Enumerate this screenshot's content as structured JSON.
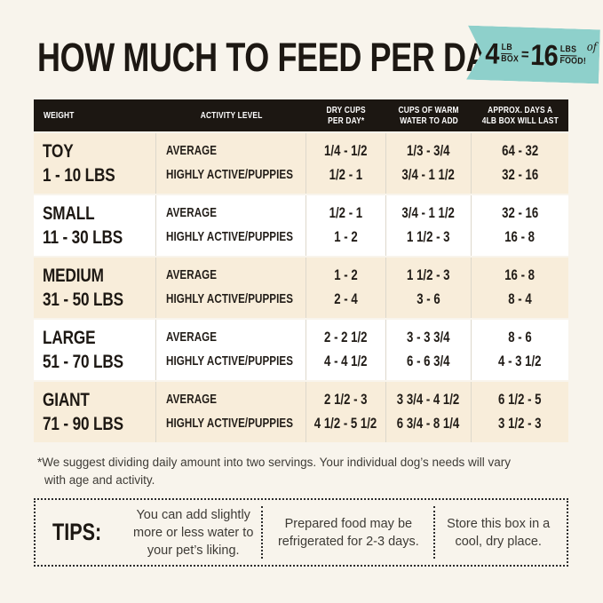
{
  "header": {
    "title": "HOW MUCH TO FEED PER DAY",
    "ribbon": {
      "qty1": "4",
      "unit1_top": "LB",
      "unit1_bottom": "BOX",
      "equals": "=",
      "qty2": "16",
      "unit2_top": "LBS",
      "unit2_script": "of",
      "unit2_bottom": "FOOD!"
    }
  },
  "colors": {
    "accent_teal": "#8ed0cb",
    "cream_row": "#f8edda",
    "header_black": "#1c1712",
    "page_background": "#f8f4ec"
  },
  "table": {
    "columns": [
      {
        "lines": [
          "WEIGHT"
        ]
      },
      {
        "lines": [
          "ACTIVITY LEVEL"
        ]
      },
      {
        "lines": [
          "DRY CUPS",
          "PER DAY*"
        ]
      },
      {
        "lines": [
          "CUPS OF WARM",
          "WATER TO ADD"
        ]
      },
      {
        "lines": [
          "APPROX. DAYS A",
          "4LB BOX WILL LAST"
        ]
      }
    ],
    "rows": [
      {
        "size": "TOY",
        "range": "1 - 10 LBS",
        "activity": [
          "AVERAGE",
          "HIGHLY ACTIVE/PUPPIES"
        ],
        "dry_cups": [
          "1/4 - 1/2",
          "1/2 - 1"
        ],
        "water": [
          "1/3 - 3/4",
          "3/4 - 1 1/2"
        ],
        "days": [
          "64 - 32",
          "32 - 16"
        ]
      },
      {
        "size": "SMALL",
        "range": "11 - 30 LBS",
        "activity": [
          "AVERAGE",
          "HIGHLY ACTIVE/PUPPIES"
        ],
        "dry_cups": [
          "1/2 - 1",
          "1 - 2"
        ],
        "water": [
          "3/4 - 1 1/2",
          "1 1/2 - 3"
        ],
        "days": [
          "32 - 16",
          "16 - 8"
        ]
      },
      {
        "size": "MEDIUM",
        "range": "31 - 50 LBS",
        "activity": [
          "AVERAGE",
          "HIGHLY ACTIVE/PUPPIES"
        ],
        "dry_cups": [
          "1 - 2",
          "2 - 4"
        ],
        "water": [
          "1 1/2 - 3",
          "3 - 6"
        ],
        "days": [
          "16 - 8",
          "8 - 4"
        ]
      },
      {
        "size": "LARGE",
        "range": "51 - 70 LBS",
        "activity": [
          "AVERAGE",
          "HIGHLY ACTIVE/PUPPIES"
        ],
        "dry_cups": [
          "2 - 2 1/2",
          "4 - 4 1/2"
        ],
        "water": [
          "3 - 3 3/4",
          "6 - 6 3/4"
        ],
        "days": [
          "8 - 6",
          "4 - 3 1/2"
        ]
      },
      {
        "size": "GIANT",
        "range": "71 - 90 LBS",
        "activity": [
          "AVERAGE",
          "HIGHLY ACTIVE/PUPPIES"
        ],
        "dry_cups": [
          "2 1/2 - 3",
          "4 1/2 - 5 1/2"
        ],
        "water": [
          "3 3/4 - 4 1/2",
          "6 3/4 - 8 1/4"
        ],
        "days": [
          "6 1/2 - 5",
          "3 1/2 - 3"
        ]
      }
    ]
  },
  "footnote": {
    "line1": "*We suggest dividing daily amount into two servings. Your individual dog’s needs will vary",
    "line2": "with age and activity."
  },
  "tips": {
    "label": "TIPS:",
    "items": [
      "You can add slightly more or less water to your pet’s liking.",
      "Prepared food may be refrigerated for 2-3 days.",
      "Store this box in a cool, dry place."
    ]
  }
}
